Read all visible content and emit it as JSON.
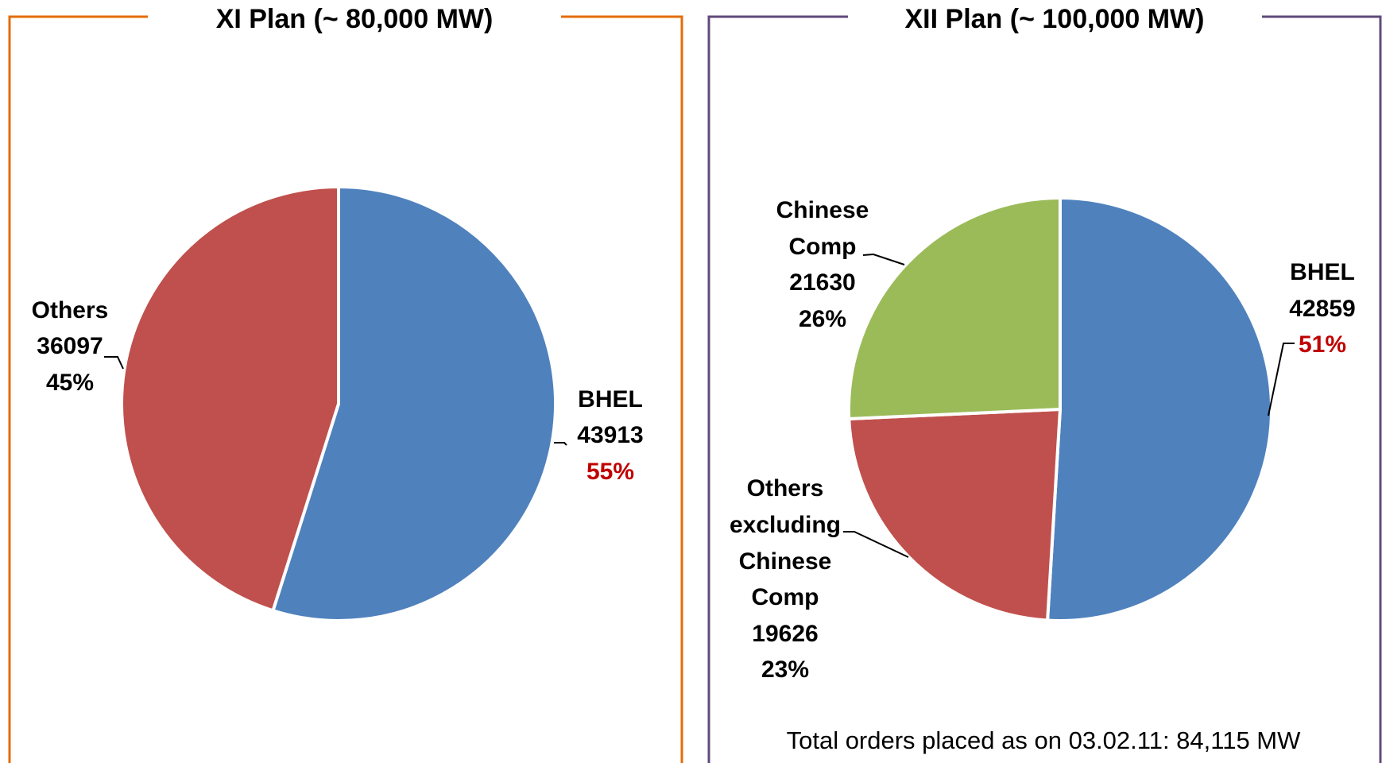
{
  "chart_data": [
    {
      "type": "pie",
      "title": "XI Plan (~ 80,000 MW)",
      "frame_color": "#E46C0A",
      "slices": [
        {
          "name": "BHEL",
          "value": 43913,
          "percent": "55%",
          "value_label": "43913",
          "color": "#4F81BD",
          "percent_color": "#C00000"
        },
        {
          "name": "Others",
          "value": 36097,
          "percent": "45%",
          "value_label": "36097",
          "color": "#C0504D",
          "percent_color": "#000000"
        }
      ]
    },
    {
      "type": "pie",
      "title": "XII Plan (~ 100,000 MW)",
      "frame_color": "#604A7B",
      "slices": [
        {
          "name": "BHEL",
          "value": 42859,
          "percent": "51%",
          "value_label": "42859",
          "color": "#4F81BD",
          "percent_color": "#C00000"
        },
        {
          "name": "Others excluding Chinese Comp",
          "value": 19626,
          "percent": "23%",
          "value_label": "19626",
          "color": "#C0504D",
          "percent_color": "#000000"
        },
        {
          "name": "Chinese Comp",
          "value": 21630,
          "percent": "26%",
          "value_label": "21630",
          "color": "#9BBB59",
          "percent_color": "#000000"
        }
      ],
      "footnote": "Total orders placed as on 03.02.11: 84,115 MW"
    }
  ]
}
